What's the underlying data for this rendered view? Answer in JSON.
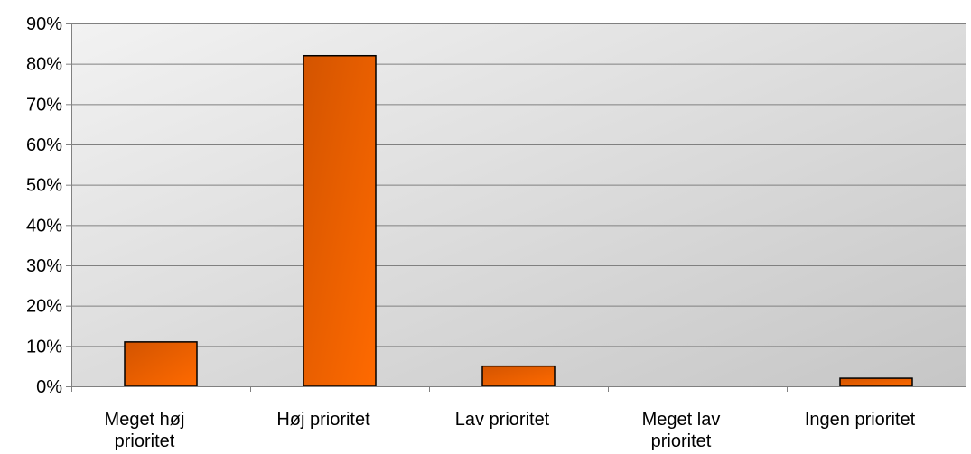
{
  "chart_data": {
    "type": "bar",
    "categories": [
      "Meget høj prioritet",
      "Høj prioritet",
      "Lav prioritet",
      "Meget lav prioritet",
      "Ingen prioritet"
    ],
    "category_lines": [
      [
        "Meget høj",
        "prioritet"
      ],
      [
        "Høj prioritet"
      ],
      [
        "Lav prioritet"
      ],
      [
        "Meget lav",
        "prioritet"
      ],
      [
        "Ingen prioritet"
      ]
    ],
    "values": [
      11,
      82,
      5,
      0,
      2
    ],
    "ylim": [
      0,
      90
    ],
    "yticks": [
      0,
      10,
      20,
      30,
      40,
      50,
      60,
      70,
      80,
      90
    ],
    "ytick_suffix": "%",
    "grid": true,
    "legend": "none",
    "colors": {
      "bar_dark": "#d35400",
      "bar_light": "#ff6a00",
      "plot_bg_light": "#f2f2f2",
      "plot_bg_dark": "#c6c6c6",
      "grid": "#808080",
      "axis": "#808080"
    }
  }
}
